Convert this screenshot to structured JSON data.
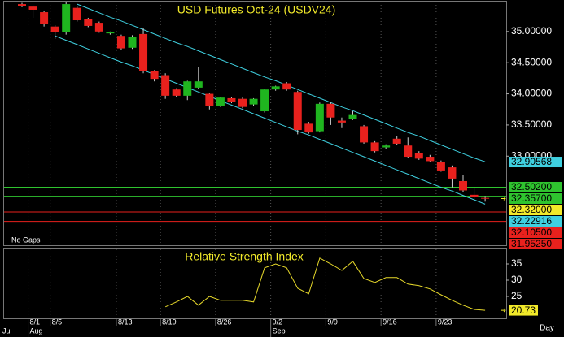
{
  "chart_data": {
    "type": "candlestick",
    "title": "USD Futures Oct-24 (USDV24)",
    "note": "No Gaps",
    "x_label": "Day",
    "categories": [
      null,
      "8/1",
      null,
      "8/5",
      null,
      null,
      null,
      null,
      null,
      "8/13",
      null,
      null,
      null,
      "8/19",
      null,
      null,
      null,
      null,
      "8/26",
      null,
      null,
      null,
      null,
      "9/2",
      null,
      null,
      null,
      null,
      "9/9",
      null,
      null,
      null,
      null,
      "9/16",
      null,
      null,
      null,
      null,
      "9/23",
      null,
      null,
      null,
      null
    ],
    "months": [
      "Jul",
      "Aug",
      null,
      null,
      null,
      null,
      null,
      null,
      null,
      null,
      null,
      null,
      null,
      null,
      null,
      null,
      null,
      null,
      null,
      null,
      null,
      null,
      null,
      "Sep",
      null,
      null,
      null,
      null,
      null,
      null,
      null,
      null,
      null,
      null,
      null,
      null,
      null,
      null,
      null,
      null,
      null,
      null,
      null
    ],
    "up_color": "#1fb51f",
    "down_color": "#e8211d",
    "wick_color": "#cfcfcf",
    "open": [
      35.44,
      35.4,
      35.31,
      35.08,
      34.99,
      35.38,
      35.2,
      35.14,
      34.97,
      34.93,
      34.74,
      34.96,
      34.36,
      34.3,
      34.07,
      33.97,
      34.1,
      34.0,
      33.81,
      33.93,
      33.92,
      33.83,
      33.72,
      34.07,
      34.17,
      34.03,
      33.52,
      33.4,
      33.84,
      33.57,
      33.6,
      33.48,
      33.22,
      33.14,
      33.28,
      33.17,
      33.05,
      32.99,
      32.9,
      32.82,
      32.6,
      32.38,
      32.33
    ],
    "high": [
      35.46,
      35.42,
      35.33,
      35.1,
      35.47,
      35.4,
      35.22,
      35.16,
      35.0,
      34.95,
      34.94,
      35.05,
      34.38,
      34.33,
      34.09,
      34.21,
      34.43,
      34.02,
      33.95,
      33.95,
      33.94,
      33.93,
      34.08,
      34.13,
      34.19,
      34.05,
      33.55,
      33.86,
      33.86,
      33.62,
      33.72,
      33.5,
      33.24,
      33.19,
      33.32,
      33.3,
      33.08,
      33.02,
      32.93,
      32.85,
      32.7,
      32.5,
      32.36
    ],
    "low": [
      35.39,
      35.22,
      35.08,
      34.88,
      34.95,
      35.16,
      35.07,
      34.98,
      34.95,
      34.71,
      34.72,
      34.33,
      34.2,
      33.92,
      33.95,
      33.9,
      34.08,
      33.75,
      33.79,
      33.85,
      33.77,
      33.81,
      33.7,
      34.05,
      34.05,
      33.35,
      33.36,
      33.38,
      33.5,
      33.45,
      33.58,
      33.2,
      33.06,
      33.12,
      33.18,
      32.97,
      32.94,
      32.9,
      32.75,
      32.5,
      32.43,
      32.3,
      32.27
    ],
    "close": [
      35.41,
      35.35,
      35.12,
      34.99,
      35.44,
      35.18,
      35.09,
      35.0,
      34.99,
      34.73,
      34.92,
      34.36,
      34.24,
      33.97,
      33.97,
      34.2,
      34.2,
      33.81,
      33.94,
      33.87,
      33.79,
      33.92,
      34.07,
      34.12,
      34.07,
      33.42,
      33.38,
      33.84,
      33.62,
      33.54,
      33.66,
      33.22,
      33.08,
      33.17,
      33.2,
      32.99,
      32.96,
      32.92,
      32.77,
      32.64,
      32.45,
      32.35,
      32.32
    ],
    "ylim": [
      31.57,
      35.48
    ],
    "yticks": [
      {
        "value": 35,
        "label": "35.00000"
      },
      {
        "value": 34.5,
        "label": "34.50000"
      },
      {
        "value": 34,
        "label": "34.00000"
      },
      {
        "value": 33.5,
        "label": "33.50000"
      },
      {
        "value": 33,
        "label": "33.00000"
      }
    ],
    "channels": [
      {
        "color": "#3fd0e0",
        "values": [
          null,
          null,
          null,
          null,
          null,
          35.44,
          35.37,
          35.3,
          35.23,
          35.17,
          35.1,
          35.03,
          34.96,
          34.89,
          34.82,
          34.76,
          34.69,
          34.62,
          34.55,
          34.48,
          34.41,
          34.34,
          34.27,
          34.21,
          34.14,
          34.07,
          34.0,
          33.93,
          33.86,
          33.79,
          33.73,
          33.66,
          33.59,
          33.52,
          33.45,
          33.38,
          33.32,
          33.25,
          33.18,
          33.11,
          33.04,
          32.97,
          32.91
        ]
      },
      {
        "color": "#3fd0e0",
        "values": [
          null,
          null,
          null,
          34.93,
          34.86,
          34.79,
          34.72,
          34.65,
          34.58,
          34.51,
          34.45,
          34.38,
          34.31,
          34.24,
          34.17,
          34.1,
          34.03,
          33.96,
          33.89,
          33.82,
          33.75,
          33.68,
          33.61,
          33.54,
          33.47,
          33.4,
          33.34,
          33.27,
          33.2,
          33.13,
          33.06,
          32.99,
          32.92,
          32.85,
          32.78,
          32.71,
          32.64,
          32.57,
          32.5,
          32.44,
          32.37,
          32.3,
          32.23
        ]
      }
    ],
    "levels": [
      {
        "value": 32.90568,
        "label": "32.90568",
        "color": "#3fd0e0",
        "line": false
      },
      {
        "value": 32.502,
        "label": "32.50200",
        "color": "#2fc42f",
        "line": true
      },
      {
        "value": 32.357,
        "label": "32.35700",
        "color": "#2fc42f",
        "line": true
      },
      {
        "value": 32.32,
        "label": "32.32000",
        "color": "#f2ea2a",
        "line": false
      },
      {
        "value": 32.22916,
        "label": "32.22916",
        "color": "#3fd0e0",
        "line": false
      },
      {
        "value": 32.105,
        "label": "32.10500",
        "color": "#e8211d",
        "line": true
      },
      {
        "value": 31.9525,
        "label": "31.95250",
        "color": "#e8211d",
        "line": true
      }
    ],
    "indicator": {
      "title": "Relative Strength Index",
      "color": "#e6d82a",
      "values": [
        null,
        null,
        null,
        null,
        null,
        null,
        null,
        null,
        null,
        null,
        null,
        null,
        null,
        21.8,
        23.3,
        25,
        22.3,
        25,
        23.8,
        23.8,
        23.8,
        23.3,
        33.8,
        35,
        33.8,
        27.5,
        25.8,
        36.8,
        35,
        33,
        35.8,
        30.5,
        29.3,
        30.8,
        30.8,
        28.8,
        28.3,
        27.3,
        25.5,
        23.8,
        22.3,
        21,
        20.73
      ],
      "ylim": [
        18.25,
        39.5
      ],
      "yticks": [
        25,
        30,
        35
      ],
      "last": {
        "value": 20.73,
        "label": "20.73"
      }
    }
  }
}
